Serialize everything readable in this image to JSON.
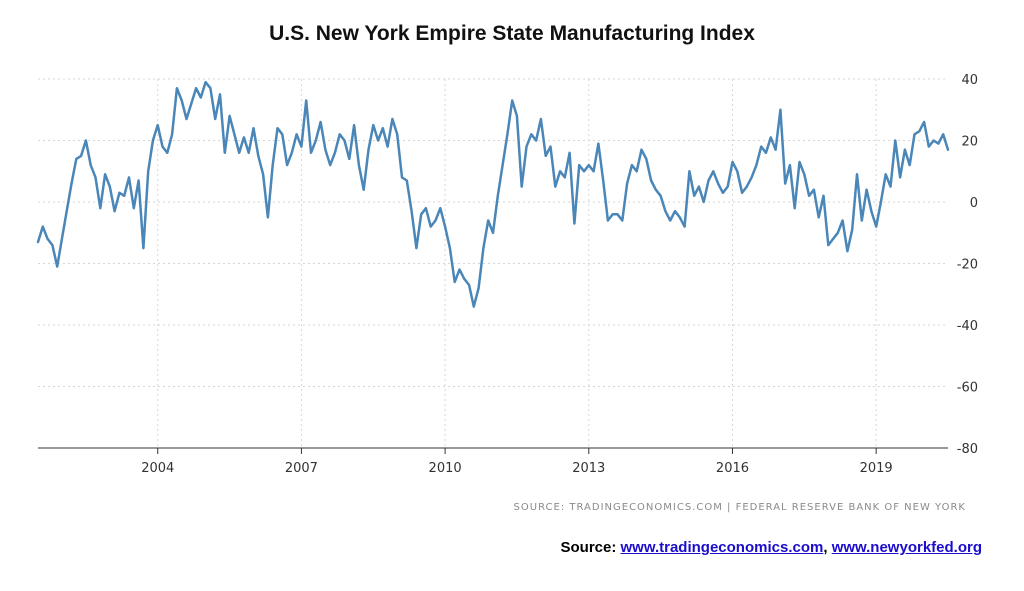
{
  "chart_data": {
    "type": "line",
    "title": "U.S. New York Empire State Manufacturing Index",
    "xlabel": "",
    "ylabel": "",
    "x_range": [
      2001.5,
      2020.5
    ],
    "ylim": [
      -80,
      40
    ],
    "x_ticks": [
      {
        "value": 2004,
        "label": "2004"
      },
      {
        "value": 2007,
        "label": "2007"
      },
      {
        "value": 2010,
        "label": "2010"
      },
      {
        "value": 2013,
        "label": "2013"
      },
      {
        "value": 2016,
        "label": "2016"
      },
      {
        "value": 2019,
        "label": "2019"
      }
    ],
    "y_ticks": [
      {
        "value": 40,
        "label": "40"
      },
      {
        "value": 20,
        "label": "20"
      },
      {
        "value": 0,
        "label": "0"
      },
      {
        "value": -20,
        "label": "-20"
      },
      {
        "value": -40,
        "label": "-40"
      },
      {
        "value": -60,
        "label": "-60"
      },
      {
        "value": -80,
        "label": "-80"
      }
    ],
    "grid": true,
    "line_color": "#4a86b8",
    "series": [
      {
        "name": "",
        "points": [
          [
            2001.5,
            -13
          ],
          [
            2001.6,
            -8
          ],
          [
            2001.7,
            -12
          ],
          [
            2001.8,
            -14
          ],
          [
            2001.9,
            -21
          ],
          [
            2002.0,
            -12
          ],
          [
            2002.1,
            -3
          ],
          [
            2002.2,
            6
          ],
          [
            2002.3,
            14
          ],
          [
            2002.4,
            15
          ],
          [
            2002.5,
            20
          ],
          [
            2002.6,
            12
          ],
          [
            2002.7,
            8
          ],
          [
            2002.8,
            -2
          ],
          [
            2002.9,
            9
          ],
          [
            2003.0,
            5
          ],
          [
            2003.1,
            -3
          ],
          [
            2003.2,
            3
          ],
          [
            2003.3,
            2
          ],
          [
            2003.4,
            8
          ],
          [
            2003.5,
            -2
          ],
          [
            2003.6,
            7
          ],
          [
            2003.7,
            -15
          ],
          [
            2003.8,
            10
          ],
          [
            2003.9,
            20
          ],
          [
            2004.0,
            25
          ],
          [
            2004.1,
            18
          ],
          [
            2004.2,
            16
          ],
          [
            2004.3,
            22
          ],
          [
            2004.4,
            37
          ],
          [
            2004.5,
            33
          ],
          [
            2004.6,
            27
          ],
          [
            2004.7,
            32
          ],
          [
            2004.8,
            37
          ],
          [
            2004.9,
            34
          ],
          [
            2005.0,
            39
          ],
          [
            2005.1,
            37
          ],
          [
            2005.2,
            27
          ],
          [
            2005.3,
            35
          ],
          [
            2005.4,
            16
          ],
          [
            2005.5,
            28
          ],
          [
            2005.6,
            22
          ],
          [
            2005.7,
            16
          ],
          [
            2005.8,
            21
          ],
          [
            2005.9,
            16
          ],
          [
            2006.0,
            24
          ],
          [
            2006.1,
            15
          ],
          [
            2006.2,
            9
          ],
          [
            2006.3,
            -5
          ],
          [
            2006.4,
            12
          ],
          [
            2006.5,
            24
          ],
          [
            2006.6,
            22
          ],
          [
            2006.7,
            12
          ],
          [
            2006.8,
            16
          ],
          [
            2006.9,
            22
          ],
          [
            2007.0,
            18
          ],
          [
            2007.1,
            33
          ],
          [
            2007.2,
            16
          ],
          [
            2007.3,
            20
          ],
          [
            2007.4,
            26
          ],
          [
            2007.5,
            17
          ],
          [
            2007.6,
            12
          ],
          [
            2007.7,
            16
          ],
          [
            2007.8,
            22
          ],
          [
            2007.9,
            20
          ],
          [
            2008.0,
            14
          ],
          [
            2008.1,
            25
          ],
          [
            2008.2,
            12
          ],
          [
            2008.3,
            4
          ],
          [
            2008.4,
            17
          ],
          [
            2008.5,
            25
          ],
          [
            2008.6,
            20
          ],
          [
            2008.7,
            24
          ],
          [
            2008.8,
            18
          ],
          [
            2008.9,
            27
          ],
          [
            2009.0,
            22
          ],
          [
            2009.1,
            8
          ],
          [
            2009.2,
            7
          ],
          [
            2009.3,
            -3
          ],
          [
            2009.4,
            -15
          ],
          [
            2009.5,
            -4
          ],
          [
            2009.6,
            -2
          ],
          [
            2009.7,
            -8
          ],
          [
            2009.8,
            -6
          ],
          [
            2009.9,
            -2
          ],
          [
            2010.0,
            -8
          ],
          [
            2010.1,
            -15
          ],
          [
            2010.2,
            -26
          ],
          [
            2010.3,
            -22
          ],
          [
            2010.4,
            -25
          ],
          [
            2010.5,
            -27
          ],
          [
            2010.6,
            -34
          ],
          [
            2010.7,
            -28
          ],
          [
            2010.8,
            -15
          ],
          [
            2010.9,
            -6
          ],
          [
            2011.0,
            -10
          ],
          [
            2011.1,
            2
          ],
          [
            2011.2,
            12
          ],
          [
            2011.3,
            22
          ],
          [
            2011.4,
            33
          ],
          [
            2011.5,
            28
          ],
          [
            2011.6,
            5
          ],
          [
            2011.7,
            18
          ],
          [
            2011.8,
            22
          ],
          [
            2011.9,
            20
          ],
          [
            2012.0,
            27
          ],
          [
            2012.1,
            15
          ],
          [
            2012.2,
            18
          ],
          [
            2012.3,
            5
          ],
          [
            2012.4,
            10
          ],
          [
            2012.5,
            8
          ],
          [
            2012.6,
            16
          ],
          [
            2012.7,
            -7
          ],
          [
            2012.8,
            12
          ],
          [
            2012.9,
            10
          ],
          [
            2013.0,
            12
          ],
          [
            2013.1,
            10
          ],
          [
            2013.2,
            19
          ],
          [
            2013.3,
            7
          ],
          [
            2013.4,
            -6
          ],
          [
            2013.5,
            -4
          ],
          [
            2013.6,
            -4
          ],
          [
            2013.7,
            -6
          ],
          [
            2013.8,
            6
          ],
          [
            2013.9,
            12
          ],
          [
            2014.0,
            10
          ],
          [
            2014.1,
            17
          ],
          [
            2014.2,
            14
          ],
          [
            2014.3,
            7
          ],
          [
            2014.4,
            4
          ],
          [
            2014.5,
            2
          ],
          [
            2014.6,
            -3
          ],
          [
            2014.7,
            -6
          ],
          [
            2014.8,
            -3
          ],
          [
            2014.9,
            -5
          ],
          [
            2015.0,
            -8
          ],
          [
            2015.1,
            10
          ],
          [
            2015.2,
            2
          ],
          [
            2015.3,
            5
          ],
          [
            2015.4,
            0
          ],
          [
            2015.5,
            7
          ],
          [
            2015.6,
            10
          ],
          [
            2015.7,
            6
          ],
          [
            2015.8,
            3
          ],
          [
            2015.9,
            5
          ],
          [
            2016.0,
            13
          ],
          [
            2016.1,
            10
          ],
          [
            2016.2,
            3
          ],
          [
            2016.3,
            5
          ],
          [
            2016.4,
            8
          ],
          [
            2016.5,
            12
          ],
          [
            2016.6,
            18
          ],
          [
            2016.7,
            16
          ],
          [
            2016.8,
            21
          ],
          [
            2016.9,
            17
          ],
          [
            2017.0,
            30
          ],
          [
            2017.1,
            6
          ],
          [
            2017.2,
            12
          ],
          [
            2017.3,
            -2
          ],
          [
            2017.4,
            13
          ],
          [
            2017.5,
            9
          ],
          [
            2017.6,
            2
          ],
          [
            2017.7,
            4
          ],
          [
            2017.8,
            -5
          ],
          [
            2017.9,
            2
          ],
          [
            2018.0,
            -14
          ],
          [
            2018.1,
            -12
          ],
          [
            2018.2,
            -10
          ],
          [
            2018.3,
            -6
          ],
          [
            2018.4,
            -16
          ],
          [
            2018.5,
            -9
          ],
          [
            2018.6,
            9
          ],
          [
            2018.7,
            -6
          ],
          [
            2018.8,
            4
          ],
          [
            2018.9,
            -3
          ],
          [
            2019.0,
            -8
          ],
          [
            2019.1,
            0
          ],
          [
            2019.2,
            9
          ],
          [
            2019.3,
            5
          ],
          [
            2019.4,
            20
          ],
          [
            2019.5,
            8
          ],
          [
            2019.6,
            17
          ],
          [
            2019.7,
            12
          ],
          [
            2019.8,
            22
          ],
          [
            2019.9,
            23
          ],
          [
            2020.0,
            26
          ],
          [
            2020.1,
            18
          ],
          [
            2020.2,
            20
          ],
          [
            2020.3,
            19
          ],
          [
            2020.4,
            22
          ],
          [
            2020.5,
            17
          ]
        ]
      }
    ]
  },
  "credit": "SOURCE: TRADINGECONOMICS.COM | FEDERAL RESERVE BANK OF NEW YORK",
  "source_note": {
    "prefix": "Source:",
    "link1": "www.tradingeconomics.com",
    "separator": ",",
    "link2": "www.newyorkfed.org"
  }
}
